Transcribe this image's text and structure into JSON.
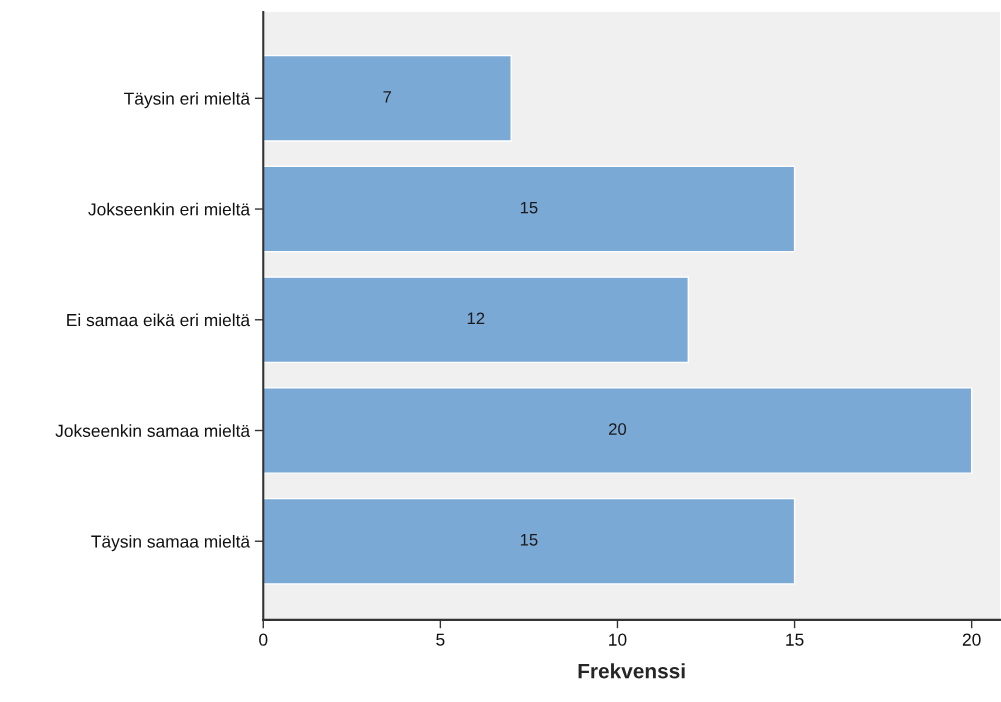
{
  "chart_data": {
    "type": "bar",
    "orientation": "horizontal",
    "xlabel": "Frekvenssi",
    "categories": [
      "Täysin eri mieltä",
      "Jokseenkin eri mieltä",
      "Ei samaa eikä eri mieltä",
      "Jokseenkin samaa mieltä",
      "Täysin samaa mieltä"
    ],
    "values": [
      7,
      15,
      12,
      20,
      15
    ],
    "color": "#7ba9d6",
    "xlim": [
      0,
      20.8
    ],
    "xticks": [
      0,
      5,
      10,
      15,
      20
    ],
    "grid": false,
    "data_labels": true
  }
}
